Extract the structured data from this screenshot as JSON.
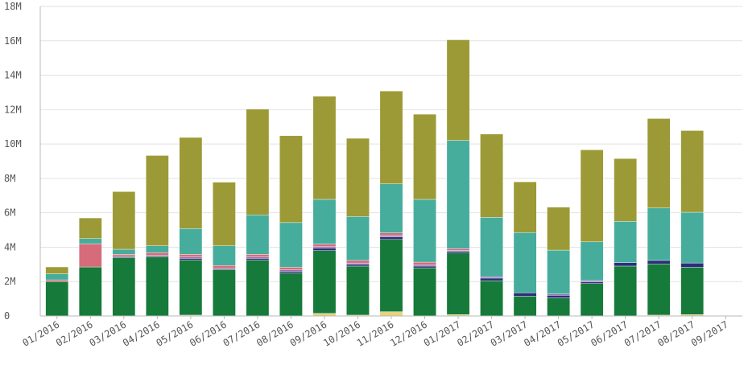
{
  "chart_data": {
    "type": "bar",
    "stacked": true,
    "title": "",
    "xlabel": "",
    "ylabel": "",
    "ylim": [
      0,
      18000000
    ],
    "y_ticks": [
      {
        "value": 0,
        "label": "0"
      },
      {
        "value": 2000000,
        "label": "2M"
      },
      {
        "value": 4000000,
        "label": "4M"
      },
      {
        "value": 6000000,
        "label": "6M"
      },
      {
        "value": 8000000,
        "label": "8M"
      },
      {
        "value": 10000000,
        "label": "10M"
      },
      {
        "value": 12000000,
        "label": "12M"
      },
      {
        "value": 14000000,
        "label": "14M"
      },
      {
        "value": 16000000,
        "label": "16M"
      },
      {
        "value": 18000000,
        "label": "18M"
      }
    ],
    "grid": true,
    "legend": "none",
    "categories": [
      "01/2016",
      "02/2016",
      "03/2016",
      "04/2016",
      "05/2016",
      "06/2016",
      "07/2016",
      "08/2016",
      "09/2016",
      "10/2016",
      "11/2016",
      "12/2016",
      "01/2017",
      "02/2017",
      "03/2017",
      "04/2017",
      "05/2017",
      "06/2017",
      "07/2017",
      "08/2017",
      "09/2017"
    ],
    "series": [
      {
        "color": "#e8d27a",
        "values": [
          0,
          0,
          0,
          0,
          50000,
          0,
          0,
          0,
          150000,
          50000,
          250000,
          0,
          80000,
          0,
          0,
          0,
          0,
          0,
          50000,
          80000,
          0
        ]
      },
      {
        "color": "#157a3a",
        "values": [
          2000000,
          2850000,
          3400000,
          3450000,
          3200000,
          2700000,
          3250000,
          2500000,
          3650000,
          2850000,
          4200000,
          2800000,
          3580000,
          2050000,
          1150000,
          1050000,
          1880000,
          2900000,
          2980000,
          2750000,
          0
        ]
      },
      {
        "color": "#2b2f7a",
        "values": [
          0,
          0,
          0,
          0,
          100000,
          0,
          100000,
          100000,
          150000,
          100000,
          150000,
          100000,
          100000,
          150000,
          200000,
          150000,
          100000,
          200000,
          200000,
          250000,
          0
        ]
      },
      {
        "color": "#9a6fb0",
        "values": [
          0,
          0,
          80000,
          80000,
          80000,
          80000,
          80000,
          80000,
          80000,
          80000,
          80000,
          80000,
          50000,
          80000,
          0,
          80000,
          80000,
          0,
          0,
          0,
          0
        ]
      },
      {
        "color": "#d66b7a",
        "values": [
          100000,
          1350000,
          100000,
          150000,
          150000,
          150000,
          150000,
          150000,
          150000,
          150000,
          150000,
          150000,
          100000,
          0,
          0,
          0,
          0,
          0,
          0,
          0,
          0
        ]
      },
      {
        "color": "#46ad9c",
        "values": [
          350000,
          300000,
          300000,
          400000,
          1500000,
          1150000,
          2300000,
          2600000,
          2600000,
          2550000,
          2850000,
          3650000,
          6300000,
          3450000,
          3500000,
          2550000,
          2250000,
          2400000,
          3050000,
          2950000,
          0
        ]
      },
      {
        "color": "#9c9a36",
        "values": [
          400000,
          1200000,
          3350000,
          5250000,
          5300000,
          3700000,
          6150000,
          5050000,
          6000000,
          4550000,
          5400000,
          4950000,
          5850000,
          4850000,
          2950000,
          2500000,
          5350000,
          3650000,
          5200000,
          4750000,
          0
        ]
      }
    ]
  }
}
